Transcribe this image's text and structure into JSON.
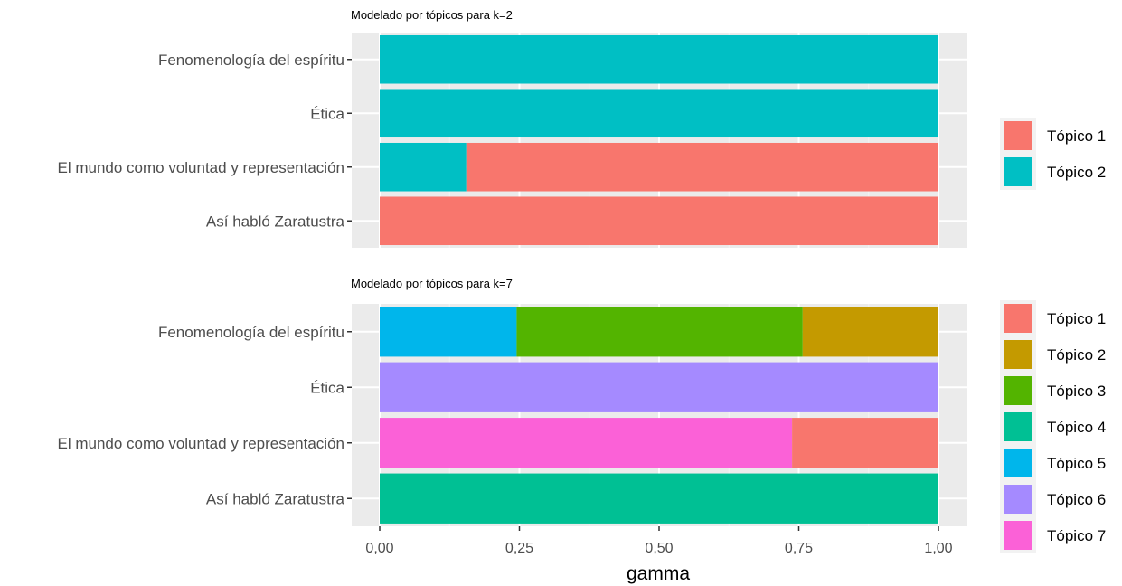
{
  "chart_data": [
    {
      "type": "bar",
      "orientation": "horizontal",
      "stacked": true,
      "title": "Modelado por tópicos para k=2",
      "categories": [
        "Fenomenología del espíritu",
        "Ética",
        "El mundo como voluntad y representación",
        "Así habló Zaratustra"
      ],
      "series": [
        {
          "name": "Tópico 1",
          "color": "#F8766D",
          "values": [
            0,
            0,
            0.845,
            1.0
          ]
        },
        {
          "name": "Tópico 2",
          "color": "#00BFC4",
          "values": [
            1.0,
            1.0,
            0.155,
            0
          ]
        }
      ],
      "stack_order_from_left": [
        "Tópico 2",
        "Tópico 1"
      ],
      "xlim": [
        0,
        1
      ],
      "xticks": [
        "0,00",
        "0,25",
        "0,50",
        "0,75",
        "1,00"
      ],
      "xtick_values": [
        0,
        0.25,
        0.5,
        0.75,
        1.0
      ],
      "show_xticks": false,
      "grid": true,
      "legend": "right"
    },
    {
      "type": "bar",
      "orientation": "horizontal",
      "stacked": true,
      "title": "Modelado por tópicos para k=7",
      "categories": [
        "Fenomenología del espíritu",
        "Ética",
        "El mundo como voluntad y representación",
        "Así habló Zaratustra"
      ],
      "series": [
        {
          "name": "Tópico 1",
          "color": "#F8766D",
          "values": [
            0,
            0,
            0.262,
            0
          ]
        },
        {
          "name": "Tópico 2",
          "color": "#C49A00",
          "values": [
            0.243,
            0,
            0,
            0
          ]
        },
        {
          "name": "Tópico 3",
          "color": "#53B400",
          "values": [
            0.512,
            0,
            0,
            0
          ]
        },
        {
          "name": "Tópico 4",
          "color": "#00C094",
          "values": [
            0,
            0,
            0,
            1.0
          ]
        },
        {
          "name": "Tópico 5",
          "color": "#00B6EB",
          "values": [
            0.245,
            0,
            0,
            0
          ]
        },
        {
          "name": "Tópico 6",
          "color": "#A58AFF",
          "values": [
            0,
            1.0,
            0,
            0
          ]
        },
        {
          "name": "Tópico 7",
          "color": "#FB61D7",
          "values": [
            0,
            0,
            0.738,
            0
          ]
        }
      ],
      "stack_order_from_left": [
        "Tópico 7",
        "Tópico 6",
        "Tópico 5",
        "Tópico 4",
        "Tópico 3",
        "Tópico 2",
        "Tópico 1"
      ],
      "xlim": [
        0,
        1
      ],
      "xticks": [
        "0,00",
        "0,25",
        "0,50",
        "0,75",
        "1,00"
      ],
      "xtick_values": [
        0,
        0.25,
        0.5,
        0.75,
        1.0
      ],
      "show_xticks": true,
      "xlabel": "gamma",
      "grid": true,
      "legend": "right"
    }
  ],
  "colors": {
    "panel_background": "#EBEBEB",
    "grid_major": "#FFFFFF",
    "grid_minor": "#F3F3F3",
    "axis_text": "#4D4D4D",
    "legend_key_background": "#F2F2F2"
  }
}
